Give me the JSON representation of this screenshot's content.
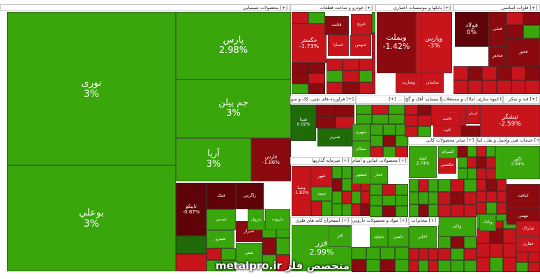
{
  "chart_data": {
    "type": "treemap",
    "colors": {
      "pos": "#39a60c",
      "pos_light": "#46b519",
      "pos_dark": "#1e6b07",
      "neg": "#c8141b",
      "neg_dark": "#8a0a0f",
      "neg_deep": "#5e0408"
    },
    "sectors": [
      {
        "name": "محصولات شیمیایی [+]"
      },
      {
        "name": "خودرو و ساخت قطعات [+]"
      },
      {
        "name": "بانکها و موسسات اعتباری [+]"
      },
      {
        "name": "فلزات اساسی [+]"
      },
      {
        "name": "فراورده های نفتی، کک و سو [+]"
      },
      {
        "name": "[+] ..."
      },
      {
        "name": "سیمان، آهک و گچ [+]"
      },
      {
        "name": "انبوه سازی، املاک و مستغلات [+]"
      },
      {
        "name": "قند و شکر [+]"
      },
      {
        "name": "سایر محصولات کانی [+]"
      },
      {
        "name": "حمل و نقل، انبا [+]"
      },
      {
        "name": "خدمات فنی و [+]"
      },
      {
        "name": "سرمایه گذاریها [+]"
      },
      {
        "name": "محصولات غذایی و آشام [+]"
      },
      {
        "name": "استخراج کانه های فلزی [+]"
      },
      {
        "name": "مواد و محصولات دارویی [+]"
      },
      {
        "name": "مخابرات [+]"
      }
    ],
    "tiles": [
      {
        "name": "نوری",
        "change": "3%"
      },
      {
        "name": "بوعلي",
        "change": "3%"
      },
      {
        "name": "پارس",
        "change": "2.98%"
      },
      {
        "name": "جم پیلن",
        "change": "3%"
      },
      {
        "name": "آریا",
        "change": "3%"
      },
      {
        "name": "فارس",
        "change": "-1.06%"
      },
      {
        "name": "تاپيكو",
        "change": "-0.87%"
      },
      {
        "name": "خگستر",
        "change": "-1.73%"
      },
      {
        "name": "وبملت",
        "change": "-1.42%"
      },
      {
        "name": "وپارس",
        "change": "-3%"
      },
      {
        "name": "فولاد",
        "change": "0%"
      },
      {
        "name": "فملی",
        "change": ""
      },
      {
        "name": "فخوز",
        "change": ""
      },
      {
        "name": "فخاهر",
        "change": ""
      },
      {
        "name": "شپنا",
        "change": "0.02%"
      },
      {
        "name": "شبریز",
        "change": ""
      },
      {
        "name": "فزر",
        "change": "2.99%"
      },
      {
        "name": "وتجارت",
        "change": ""
      },
      {
        "name": "ساسان",
        "change": ""
      },
      {
        "name": "خساپا",
        "change": ""
      },
      {
        "name": "خریخ",
        "change": ""
      },
      {
        "name": "خبهمن",
        "change": ""
      },
      {
        "name": "قثابت",
        "change": ""
      },
      {
        "name": "تیشکر",
        "change": "-2.59%"
      },
      {
        "name": "کرمان",
        "change": ""
      },
      {
        "name": "کپارس",
        "change": ""
      },
      {
        "name": "كلوند",
        "change": ""
      },
      {
        "name": "ثاخت",
        "change": ""
      },
      {
        "name": "شیراز",
        "change": ""
      },
      {
        "name": "شفن",
        "change": ""
      },
      {
        "name": "فمک",
        "change": ""
      },
      {
        "name": "زاگرس",
        "change": ""
      },
      {
        "name": "شیمیر",
        "change": ""
      },
      {
        "name": "وسپا",
        "change": "-1.83%"
      },
      {
        "name": "شهر",
        "change": ""
      },
      {
        "name": "سپید",
        "change": ""
      },
      {
        "name": "سهرم",
        "change": ""
      },
      {
        "name": "سیلام",
        "change": ""
      },
      {
        "name": "غمار",
        "change": ""
      },
      {
        "name": "غبشهر",
        "change": ""
      },
      {
        "name": "کلر",
        "change": ""
      },
      {
        "name": "دتولید",
        "change": ""
      },
      {
        "name": "دامین",
        "change": ""
      },
      {
        "name": "اخابر",
        "change": ""
      },
      {
        "name": "حکشتی",
        "change": ""
      },
      {
        "name": "کسرام",
        "change": ""
      },
      {
        "name": "کچاد",
        "change": "2.74%"
      },
      {
        "name": "کگهر",
        "change": "2.84%"
      },
      {
        "name": "کبافت",
        "change": ""
      },
      {
        "name": "تبهمن",
        "change": ""
      },
      {
        "name": "ماروت",
        "change": ""
      },
      {
        "name": "پترول",
        "change": ""
      },
      {
        "name": "شپترو",
        "change": ""
      },
      {
        "name": "شاراک",
        "change": ""
      },
      {
        "name": "وانان",
        "change": ""
      },
      {
        "name": "حفاری",
        "change": ""
      },
      {
        "name": "وبانک",
        "change": ""
      }
    ],
    "watermark": "metalpro.ir متخصص فلز"
  }
}
